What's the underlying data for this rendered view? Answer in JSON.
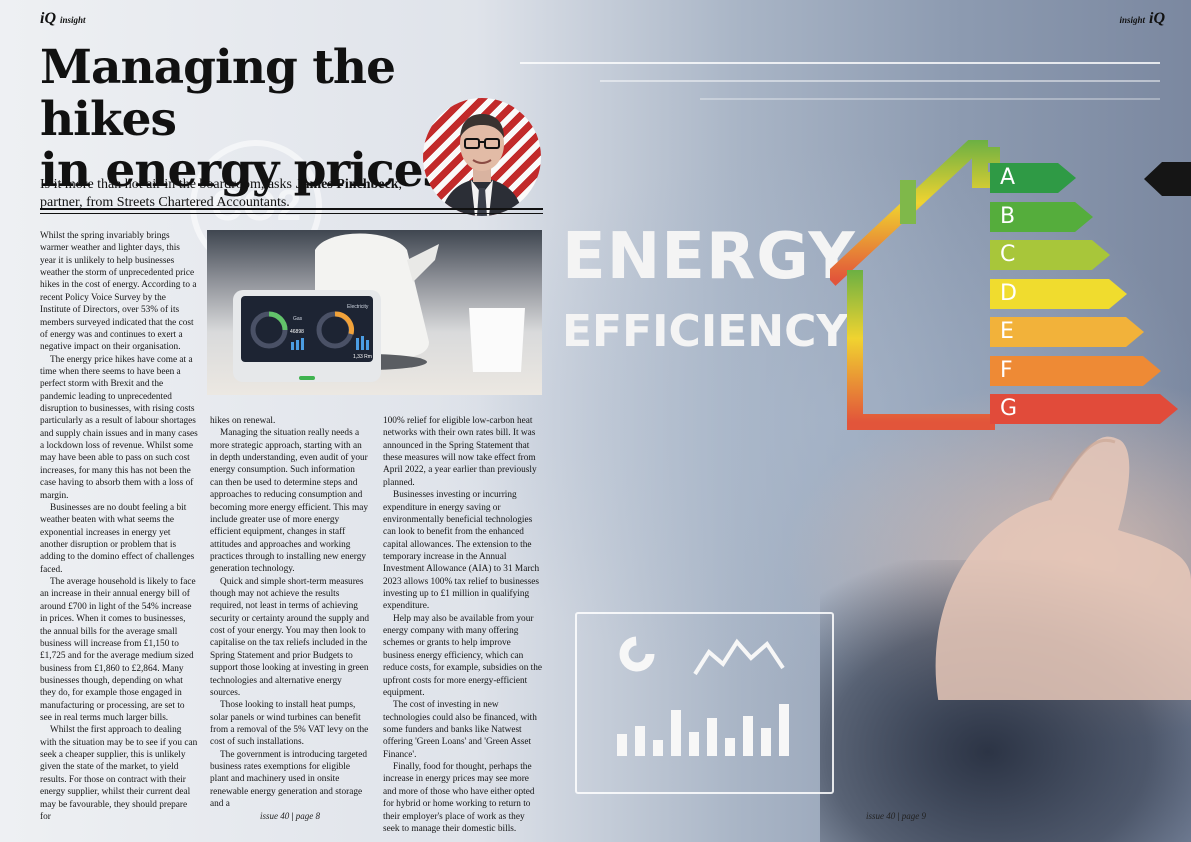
{
  "header": {
    "left_brand": "iQ",
    "left_section": "insight",
    "right_section": "insight",
    "right_brand": "iQ"
  },
  "article": {
    "headline_line1": "Managing the hikes",
    "headline_line2": "in energy prices",
    "standfirst_pre": "Is it more than hot air in the boardroom, asks ",
    "standfirst_author": "James Pinchbeck",
    "standfirst_post": ",",
    "standfirst_line2": "partner, from Streets Chartered Accountants.",
    "col1": [
      "Whilst the spring invariably brings warmer weather and lighter days, this year it is unlikely to help businesses weather the storm of unprecedented price hikes in the cost of energy. According to a recent Policy Voice Survey by the Institute of Directors, over 53% of its members surveyed indicated that the cost of energy was and continues to exert a negative impact on their organisation.",
      "The energy price hikes have come at a time when there seems to have been a perfect storm with Brexit and the pandemic leading to unprecedented disruption to businesses, with rising costs particularly as a result of labour shortages and supply chain issues and in many cases a lockdown loss of revenue. Whilst some may have been able to pass on such cost increases, for many this has not been the case having to absorb them with a loss of margin.",
      "Businesses are no doubt feeling a bit weather beaten with what seems the exponential increases in energy yet another disruption or problem that is adding to the domino effect of challenges faced.",
      "The average household is likely to face an increase in their annual energy bill of around £700 in light of the 54% increase in prices. When it comes to businesses, the annual bills for the average small business will increase from £1,150 to £1,725 and for the average medium sized business from £1,860 to £2,864. Many businesses though, depending on what they do, for example those engaged in manufacturing or processing, are set to see in real terms much larger bills.",
      "Whilst the first approach to dealing with the situation may be to see if you can seek a cheaper supplier, this is unlikely given the state of the market, to yield results. For those on contract with their energy supplier, whilst their current deal may be favourable, they should prepare for"
    ],
    "col2": [
      "hikes on renewal.",
      "Managing the situation really needs a more strategic approach, starting with an in depth understanding, even audit of your energy consumption. Such information can then be used to determine steps and approaches to reducing consumption and becoming more energy efficient.  This may include greater use of more energy efficient equipment, changes in staff attitudes and approaches and working practices through to installing new energy generation technology.",
      "Quick and simple short-term measures though may not achieve the results required, not least in terms of achieving security or certainty around the supply and cost of your energy. You may then look to capitalise on the tax reliefs included in the Spring Statement and prior Budgets to support those looking at investing in green technologies and alternative energy sources.",
      "Those looking to install heat pumps, solar panels or wind turbines can benefit from a removal of the 5% VAT levy on the cost of such installations.",
      "The government is introducing targeted business rates exemptions for eligible plant and machinery used in onsite renewable energy generation and storage and a"
    ],
    "col3": [
      "100% relief for eligible low-carbon heat networks with their own rates bill. It was announced in the Spring Statement that these measures will now take effect from April 2022, a year earlier than previously planned.",
      "Businesses investing or incurring expenditure in energy saving or environmentally beneficial technologies can look to benefit from the enhanced capital allowances. The extension to the temporary increase in the Annual Investment Allowance (AIA) to 31 March 2023 allows 100% tax relief to businesses investing up to £1 million in qualifying expenditure.",
      "Help may also be available from your energy company with many offering schemes or grants to help improve business energy efficiency, which can reduce costs, for example, subsidies on the upfront costs for more energy-efficient equipment.",
      "The cost of investing in new technologies could also be financed, with some funders and banks like Natwest offering 'Green Loans' and 'Green Asset Finance'.",
      "Finally, food for thought, perhaps the increase in energy prices may see more and more of those who have either opted for hybrid or home working to return to their employer's place of work as they seek to manage their domestic bills."
    ]
  },
  "graphic": {
    "title": "ENERGY",
    "subtitle": "EFFICIENCY",
    "co2": "CO2",
    "ratings": [
      {
        "letter": "A",
        "color": "#2f9a45"
      },
      {
        "letter": "B",
        "color": "#55ad3c"
      },
      {
        "letter": "C",
        "color": "#a8c63a"
      },
      {
        "letter": "D",
        "color": "#f0dc2e"
      },
      {
        "letter": "E",
        "color": "#f2b23a"
      },
      {
        "letter": "F",
        "color": "#ee8a35"
      },
      {
        "letter": "G",
        "color": "#e14b3a"
      }
    ]
  },
  "photo": {
    "panel_left_label": "Gas",
    "panel_left_value": "46898",
    "panel_right_label": "Electricity",
    "panel_right_value": "1,33 Rm"
  },
  "footer": {
    "left_issue": "issue 40",
    "left_page": "page 8",
    "right_issue": "issue 40",
    "right_page": "page 9"
  }
}
